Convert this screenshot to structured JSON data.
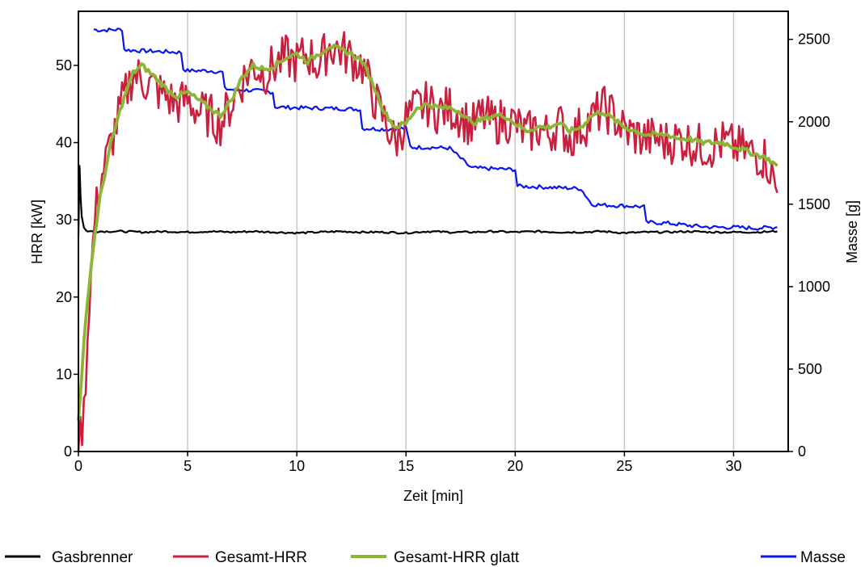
{
  "chart_data": {
    "type": "line",
    "xlabel": "Zeit [min]",
    "ylabel": "HRR [kW]",
    "y2label": "Masse [g]",
    "xlim": [
      0,
      32.5
    ],
    "ylim": [
      0,
      57
    ],
    "y2lim": [
      0,
      2670
    ],
    "x_ticks": [
      0,
      5,
      10,
      15,
      20,
      25,
      30
    ],
    "y_ticks": [
      0,
      10,
      20,
      30,
      40,
      50
    ],
    "y2_ticks": [
      0,
      500,
      1000,
      1500,
      2000,
      2500
    ],
    "grid": "vertical",
    "legend_position": "bottom",
    "series": [
      {
        "name": "Gasbrenner",
        "axis": "left",
        "color": "#000000",
        "x": [
          0,
          0.05,
          0.1,
          0.15,
          0.25,
          0.35,
          0.5,
          1,
          2,
          3,
          4,
          5,
          6,
          7,
          8,
          9,
          10,
          11,
          12,
          13,
          14,
          15,
          16,
          17,
          18,
          19,
          20,
          21,
          22,
          23,
          24,
          25,
          26,
          27,
          28,
          29,
          30,
          31,
          32
        ],
        "y": [
          28,
          37,
          33,
          30.5,
          29,
          28.6,
          28.5,
          28.5,
          28.5,
          28.4,
          28.5,
          28.4,
          28.5,
          28.4,
          28.5,
          28.4,
          28.3,
          28.4,
          28.5,
          28.4,
          28.4,
          28.3,
          28.5,
          28.4,
          28.4,
          28.5,
          28.4,
          28.5,
          28.4,
          28.4,
          28.5,
          28.3,
          28.4,
          28.4,
          28.5,
          28.4,
          28.4,
          28.4,
          28.5
        ]
      },
      {
        "name": "Gesamt-HRR",
        "axis": "left",
        "color": "#c8203e",
        "x": [
          0,
          0.25,
          0.5,
          0.75,
          1,
          1.5,
          2,
          2.5,
          3,
          3.5,
          4,
          4.5,
          5,
          5.5,
          6,
          6.5,
          7,
          7.5,
          8,
          8.5,
          9,
          9.5,
          10,
          10.5,
          11,
          11.5,
          12,
          12.5,
          13,
          13.5,
          14,
          14.5,
          15,
          15.5,
          16,
          16.5,
          17,
          17.5,
          18,
          18.5,
          19,
          19.5,
          20,
          20.5,
          21,
          21.5,
          22,
          22.5,
          23,
          23.5,
          24,
          24.5,
          25,
          25.5,
          26,
          26.5,
          27,
          27.5,
          28,
          28.5,
          29,
          29.5,
          30,
          30.5,
          31,
          31.5,
          32
        ],
        "y": [
          0,
          5,
          20,
          30,
          35,
          40,
          45,
          49,
          48,
          47,
          46,
          45,
          45.5,
          44,
          43.5,
          42.5,
          45,
          48,
          50,
          49,
          50,
          51,
          50.5,
          51.5,
          50,
          52.5,
          52,
          51,
          50,
          46,
          43,
          40,
          43,
          44.5,
          45,
          44,
          44.5,
          43.5,
          42,
          43.5,
          42.5,
          43,
          42.5,
          41,
          42,
          41,
          42.5,
          40.5,
          42,
          43,
          44.5,
          43.5,
          41.5,
          41,
          40.5,
          40.5,
          40,
          40.5,
          40,
          39.5,
          39.5,
          40,
          39.5,
          39,
          38.5,
          38,
          33.5
        ]
      },
      {
        "name": "Gesamt-HRR glatt",
        "axis": "left",
        "color": "#8db436",
        "x": [
          0,
          0.25,
          0.5,
          0.75,
          1,
          1.5,
          2,
          2.5,
          2.9,
          3.5,
          4,
          4.5,
          5,
          5.5,
          6,
          6.5,
          7,
          7.5,
          8,
          8.5,
          9,
          9.5,
          10,
          10.5,
          11,
          11.5,
          12,
          12.5,
          13,
          13.5,
          14,
          14.5,
          15,
          15.5,
          16,
          16.5,
          17,
          17.5,
          18,
          18.5,
          19,
          19.5,
          20,
          20.5,
          21,
          21.5,
          22,
          22.5,
          23,
          23.5,
          24,
          24.5,
          25,
          25.5,
          26,
          26.5,
          27,
          27.5,
          28,
          28.5,
          29,
          29.5,
          30,
          30.5,
          31,
          31.5,
          32
        ],
        "y": [
          4,
          14,
          22,
          28,
          33,
          40,
          45,
          49,
          50,
          48.5,
          47,
          46,
          46.5,
          45.5,
          44.5,
          43.5,
          45.5,
          48.5,
          50,
          49.5,
          50,
          51,
          51.5,
          50.5,
          51.5,
          52.5,
          52,
          51.5,
          50.5,
          47.5,
          44,
          42,
          42.5,
          44.5,
          45,
          44.5,
          44.5,
          44,
          42.5,
          43,
          43.5,
          43.5,
          42.5,
          41.5,
          42,
          42,
          42.5,
          41.5,
          42,
          43.5,
          44,
          43,
          42,
          41.5,
          41,
          41,
          41,
          40.5,
          40.5,
          40,
          40,
          40,
          39.5,
          39,
          38.5,
          38,
          37
        ]
      },
      {
        "name": "Masse",
        "axis": "right",
        "color": "#0a14f0",
        "x": [
          0.7,
          1,
          2,
          2.1,
          2.2,
          3,
          4,
          4.7,
          4.8,
          5,
          6,
          6.6,
          6.7,
          7,
          8,
          8.9,
          9.0,
          10,
          12,
          12.9,
          13.0,
          14,
          15,
          15.2,
          15.3,
          16,
          17,
          17.9,
          18.0,
          19,
          20,
          20.1,
          21,
          22,
          23,
          23.5,
          24,
          25,
          25.9,
          26.0,
          27,
          28,
          29,
          30,
          31,
          32
        ],
        "y": [
          2560,
          2555,
          2560,
          2440,
          2435,
          2430,
          2425,
          2420,
          2320,
          2310,
          2310,
          2300,
          2200,
          2195,
          2190,
          2180,
          2090,
          2085,
          2080,
          2075,
          1960,
          1955,
          1960,
          1850,
          1845,
          1845,
          1840,
          1730,
          1720,
          1715,
          1710,
          1610,
          1605,
          1600,
          1595,
          1500,
          1495,
          1490,
          1485,
          1390,
          1385,
          1370,
          1360,
          1360,
          1355,
          1360
        ]
      }
    ]
  },
  "legend": {
    "items": [
      {
        "label": "Gasbrenner",
        "color": "#000000"
      },
      {
        "label": "Gesamt-HRR",
        "color": "#c8203e"
      },
      {
        "label": "Gesamt-HRR glatt",
        "color": "#8db436"
      },
      {
        "label": "Masse",
        "color": "#0a14f0"
      }
    ]
  }
}
